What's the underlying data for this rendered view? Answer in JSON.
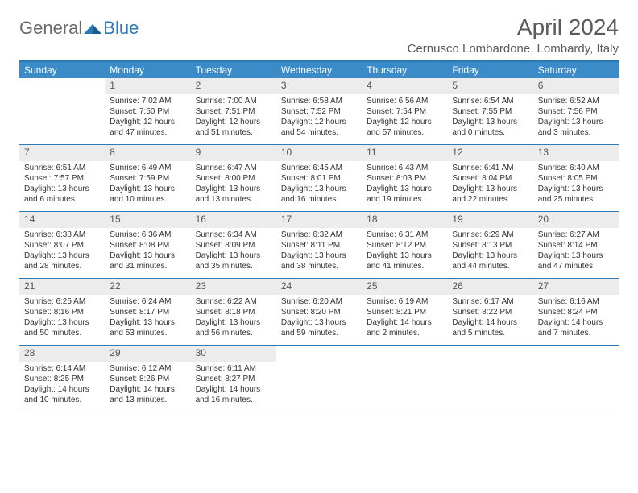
{
  "logo": {
    "general": "General",
    "blue": "Blue"
  },
  "title": "April 2024",
  "location": "Cernusco Lombardone, Lombardy, Italy",
  "colors": {
    "header_bg": "#3b8bc9",
    "border": "#2a7ab8",
    "daynum_bg": "#ececec",
    "text": "#333333",
    "muted": "#5a5a5a"
  },
  "daysOfWeek": [
    "Sunday",
    "Monday",
    "Tuesday",
    "Wednesday",
    "Thursday",
    "Friday",
    "Saturday"
  ],
  "weeks": [
    [
      {
        "n": "",
        "lines": [
          "",
          "",
          "",
          ""
        ]
      },
      {
        "n": "1",
        "lines": [
          "Sunrise: 7:02 AM",
          "Sunset: 7:50 PM",
          "Daylight: 12 hours",
          "and 47 minutes."
        ]
      },
      {
        "n": "2",
        "lines": [
          "Sunrise: 7:00 AM",
          "Sunset: 7:51 PM",
          "Daylight: 12 hours",
          "and 51 minutes."
        ]
      },
      {
        "n": "3",
        "lines": [
          "Sunrise: 6:58 AM",
          "Sunset: 7:52 PM",
          "Daylight: 12 hours",
          "and 54 minutes."
        ]
      },
      {
        "n": "4",
        "lines": [
          "Sunrise: 6:56 AM",
          "Sunset: 7:54 PM",
          "Daylight: 12 hours",
          "and 57 minutes."
        ]
      },
      {
        "n": "5",
        "lines": [
          "Sunrise: 6:54 AM",
          "Sunset: 7:55 PM",
          "Daylight: 13 hours",
          "and 0 minutes."
        ]
      },
      {
        "n": "6",
        "lines": [
          "Sunrise: 6:52 AM",
          "Sunset: 7:56 PM",
          "Daylight: 13 hours",
          "and 3 minutes."
        ]
      }
    ],
    [
      {
        "n": "7",
        "lines": [
          "Sunrise: 6:51 AM",
          "Sunset: 7:57 PM",
          "Daylight: 13 hours",
          "and 6 minutes."
        ]
      },
      {
        "n": "8",
        "lines": [
          "Sunrise: 6:49 AM",
          "Sunset: 7:59 PM",
          "Daylight: 13 hours",
          "and 10 minutes."
        ]
      },
      {
        "n": "9",
        "lines": [
          "Sunrise: 6:47 AM",
          "Sunset: 8:00 PM",
          "Daylight: 13 hours",
          "and 13 minutes."
        ]
      },
      {
        "n": "10",
        "lines": [
          "Sunrise: 6:45 AM",
          "Sunset: 8:01 PM",
          "Daylight: 13 hours",
          "and 16 minutes."
        ]
      },
      {
        "n": "11",
        "lines": [
          "Sunrise: 6:43 AM",
          "Sunset: 8:03 PM",
          "Daylight: 13 hours",
          "and 19 minutes."
        ]
      },
      {
        "n": "12",
        "lines": [
          "Sunrise: 6:41 AM",
          "Sunset: 8:04 PM",
          "Daylight: 13 hours",
          "and 22 minutes."
        ]
      },
      {
        "n": "13",
        "lines": [
          "Sunrise: 6:40 AM",
          "Sunset: 8:05 PM",
          "Daylight: 13 hours",
          "and 25 minutes."
        ]
      }
    ],
    [
      {
        "n": "14",
        "lines": [
          "Sunrise: 6:38 AM",
          "Sunset: 8:07 PM",
          "Daylight: 13 hours",
          "and 28 minutes."
        ]
      },
      {
        "n": "15",
        "lines": [
          "Sunrise: 6:36 AM",
          "Sunset: 8:08 PM",
          "Daylight: 13 hours",
          "and 31 minutes."
        ]
      },
      {
        "n": "16",
        "lines": [
          "Sunrise: 6:34 AM",
          "Sunset: 8:09 PM",
          "Daylight: 13 hours",
          "and 35 minutes."
        ]
      },
      {
        "n": "17",
        "lines": [
          "Sunrise: 6:32 AM",
          "Sunset: 8:11 PM",
          "Daylight: 13 hours",
          "and 38 minutes."
        ]
      },
      {
        "n": "18",
        "lines": [
          "Sunrise: 6:31 AM",
          "Sunset: 8:12 PM",
          "Daylight: 13 hours",
          "and 41 minutes."
        ]
      },
      {
        "n": "19",
        "lines": [
          "Sunrise: 6:29 AM",
          "Sunset: 8:13 PM",
          "Daylight: 13 hours",
          "and 44 minutes."
        ]
      },
      {
        "n": "20",
        "lines": [
          "Sunrise: 6:27 AM",
          "Sunset: 8:14 PM",
          "Daylight: 13 hours",
          "and 47 minutes."
        ]
      }
    ],
    [
      {
        "n": "21",
        "lines": [
          "Sunrise: 6:25 AM",
          "Sunset: 8:16 PM",
          "Daylight: 13 hours",
          "and 50 minutes."
        ]
      },
      {
        "n": "22",
        "lines": [
          "Sunrise: 6:24 AM",
          "Sunset: 8:17 PM",
          "Daylight: 13 hours",
          "and 53 minutes."
        ]
      },
      {
        "n": "23",
        "lines": [
          "Sunrise: 6:22 AM",
          "Sunset: 8:18 PM",
          "Daylight: 13 hours",
          "and 56 minutes."
        ]
      },
      {
        "n": "24",
        "lines": [
          "Sunrise: 6:20 AM",
          "Sunset: 8:20 PM",
          "Daylight: 13 hours",
          "and 59 minutes."
        ]
      },
      {
        "n": "25",
        "lines": [
          "Sunrise: 6:19 AM",
          "Sunset: 8:21 PM",
          "Daylight: 14 hours",
          "and 2 minutes."
        ]
      },
      {
        "n": "26",
        "lines": [
          "Sunrise: 6:17 AM",
          "Sunset: 8:22 PM",
          "Daylight: 14 hours",
          "and 5 minutes."
        ]
      },
      {
        "n": "27",
        "lines": [
          "Sunrise: 6:16 AM",
          "Sunset: 8:24 PM",
          "Daylight: 14 hours",
          "and 7 minutes."
        ]
      }
    ],
    [
      {
        "n": "28",
        "lines": [
          "Sunrise: 6:14 AM",
          "Sunset: 8:25 PM",
          "Daylight: 14 hours",
          "and 10 minutes."
        ]
      },
      {
        "n": "29",
        "lines": [
          "Sunrise: 6:12 AM",
          "Sunset: 8:26 PM",
          "Daylight: 14 hours",
          "and 13 minutes."
        ]
      },
      {
        "n": "30",
        "lines": [
          "Sunrise: 6:11 AM",
          "Sunset: 8:27 PM",
          "Daylight: 14 hours",
          "and 16 minutes."
        ]
      },
      {
        "n": "",
        "lines": [
          "",
          "",
          "",
          ""
        ]
      },
      {
        "n": "",
        "lines": [
          "",
          "",
          "",
          ""
        ]
      },
      {
        "n": "",
        "lines": [
          "",
          "",
          "",
          ""
        ]
      },
      {
        "n": "",
        "lines": [
          "",
          "",
          "",
          ""
        ]
      }
    ]
  ]
}
